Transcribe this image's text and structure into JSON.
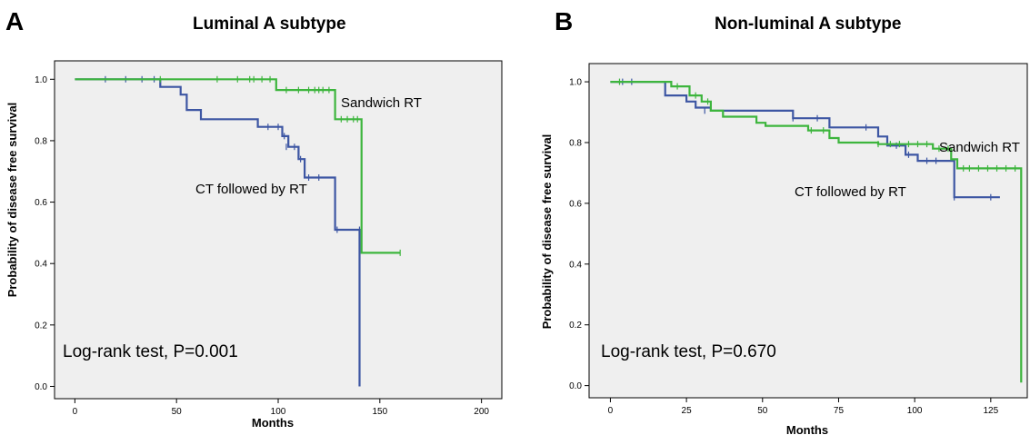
{
  "chart_data": [
    {
      "type": "line",
      "panel_letter": "A",
      "title": "Luminal A subtype",
      "xlabel": "Months",
      "ylabel": "Probability of disease free survival",
      "xlim": [
        -10,
        210
      ],
      "ylim": [
        -0.04,
        1.06
      ],
      "xticks": [
        0,
        50,
        100,
        150,
        200
      ],
      "xtick_labels": [
        "0",
        "50",
        "100",
        "150",
        "200"
      ],
      "yticks": [
        0.0,
        0.2,
        0.4,
        0.6,
        0.8,
        1.0
      ],
      "ytick_labels": [
        "0.0",
        "0.2",
        "0.4",
        "0.6",
        "0.8",
        "1.0"
      ],
      "plot_background": "#efefef",
      "grid": false,
      "annotation": "Log-rank test, P=0.001",
      "series": [
        {
          "name": "CT followed by RT",
          "color": "#3d56a3",
          "steps": [
            [
              0,
              1.0
            ],
            [
              42,
              0.975
            ],
            [
              52,
              0.95
            ],
            [
              55,
              0.9
            ],
            [
              62,
              0.87
            ],
            [
              90,
              0.845
            ],
            [
              102,
              0.815
            ],
            [
              105,
              0.78
            ],
            [
              110,
              0.74
            ],
            [
              113,
              0.68
            ],
            [
              128,
              0.51
            ],
            [
              140,
              0.0
            ]
          ],
          "censored": [
            [
              15,
              1.0
            ],
            [
              25,
              1.0
            ],
            [
              33,
              1.0
            ],
            [
              39,
              1.0
            ],
            [
              95,
              0.845
            ],
            [
              100,
              0.845
            ],
            [
              103,
              0.815
            ],
            [
              104,
              0.78
            ],
            [
              108,
              0.78
            ],
            [
              111,
              0.74
            ],
            [
              115,
              0.68
            ],
            [
              120,
              0.68
            ],
            [
              129,
              0.51
            ],
            [
              140,
              0.51
            ]
          ],
          "end_x": 140
        },
        {
          "name": "Sandwich RT",
          "color": "#3db53d",
          "steps": [
            [
              0,
              1.0
            ],
            [
              99,
              0.965
            ],
            [
              128,
              0.87
            ],
            [
              141,
              0.435
            ]
          ],
          "censored": [
            [
              42,
              1.0
            ],
            [
              70,
              1.0
            ],
            [
              80,
              1.0
            ],
            [
              86,
              1.0
            ],
            [
              88,
              1.0
            ],
            [
              92,
              1.0
            ],
            [
              96,
              1.0
            ],
            [
              104,
              0.965
            ],
            [
              110,
              0.965
            ],
            [
              115,
              0.965
            ],
            [
              118,
              0.965
            ],
            [
              120,
              0.965
            ],
            [
              122,
              0.965
            ],
            [
              125,
              0.965
            ],
            [
              131,
              0.87
            ],
            [
              134,
              0.87
            ],
            [
              137,
              0.87
            ],
            [
              139,
              0.87
            ],
            [
              160,
              0.435
            ]
          ],
          "end_x": 160
        }
      ],
      "series_labels": [
        "Sandwich RT",
        "CT followed by RT"
      ]
    },
    {
      "type": "line",
      "panel_letter": "B",
      "title": "Non-luminal A subtype",
      "xlabel": "Months",
      "ylabel": "Probability of disease free survival",
      "xlim": [
        -7,
        137
      ],
      "ylim": [
        -0.04,
        1.06
      ],
      "xticks": [
        0,
        25,
        50,
        75,
        100,
        125
      ],
      "xtick_labels": [
        "0",
        "25",
        "50",
        "75",
        "100",
        "125"
      ],
      "yticks": [
        0.0,
        0.2,
        0.4,
        0.6,
        0.8,
        1.0
      ],
      "ytick_labels": [
        "0.0",
        "0.2",
        "0.4",
        "0.6",
        "0.8",
        "1.0"
      ],
      "plot_background": "#efefef",
      "grid": false,
      "annotation": "Log-rank test, P=0.670",
      "series": [
        {
          "name": "CT followed by RT",
          "color": "#3d56a3",
          "steps": [
            [
              0,
              1.0
            ],
            [
              18,
              0.955
            ],
            [
              25,
              0.935
            ],
            [
              28,
              0.915
            ],
            [
              33,
              0.905
            ],
            [
              60,
              0.88
            ],
            [
              72,
              0.85
            ],
            [
              88,
              0.82
            ],
            [
              91,
              0.79
            ],
            [
              97,
              0.76
            ],
            [
              101,
              0.74
            ],
            [
              113,
              0.62
            ]
          ],
          "censored": [
            [
              4,
              1.0
            ],
            [
              7,
              1.0
            ],
            [
              31,
              0.905
            ],
            [
              60,
              0.88
            ],
            [
              68,
              0.88
            ],
            [
              84,
              0.85
            ],
            [
              94,
              0.79
            ],
            [
              98,
              0.76
            ],
            [
              104,
              0.74
            ],
            [
              107,
              0.74
            ],
            [
              113,
              0.62
            ],
            [
              125,
              0.62
            ]
          ],
          "end_x": 128
        },
        {
          "name": "Sandwich RT",
          "color": "#3db53d",
          "steps": [
            [
              0,
              1.0
            ],
            [
              20,
              0.985
            ],
            [
              26,
              0.955
            ],
            [
              30,
              0.935
            ],
            [
              33,
              0.905
            ],
            [
              37,
              0.885
            ],
            [
              48,
              0.865
            ],
            [
              51,
              0.855
            ],
            [
              65,
              0.84
            ],
            [
              72,
              0.815
            ],
            [
              75,
              0.8
            ],
            [
              88,
              0.795
            ],
            [
              106,
              0.78
            ],
            [
              112,
              0.745
            ],
            [
              114,
              0.715
            ],
            [
              135,
              0.01
            ]
          ],
          "censored": [
            [
              3,
              1.0
            ],
            [
              22,
              0.985
            ],
            [
              28,
              0.955
            ],
            [
              32,
              0.935
            ],
            [
              66,
              0.84
            ],
            [
              70,
              0.84
            ],
            [
              88,
              0.795
            ],
            [
              92,
              0.795
            ],
            [
              95,
              0.795
            ],
            [
              98,
              0.795
            ],
            [
              101,
              0.795
            ],
            [
              104,
              0.795
            ],
            [
              108,
              0.78
            ],
            [
              111,
              0.78
            ],
            [
              116,
              0.715
            ],
            [
              118,
              0.715
            ],
            [
              121,
              0.715
            ],
            [
              124,
              0.715
            ],
            [
              127,
              0.715
            ],
            [
              130,
              0.715
            ],
            [
              133,
              0.715
            ]
          ],
          "end_x": 135
        }
      ],
      "series_labels": [
        "Sandwich RT",
        "CT followed by RT"
      ]
    }
  ]
}
